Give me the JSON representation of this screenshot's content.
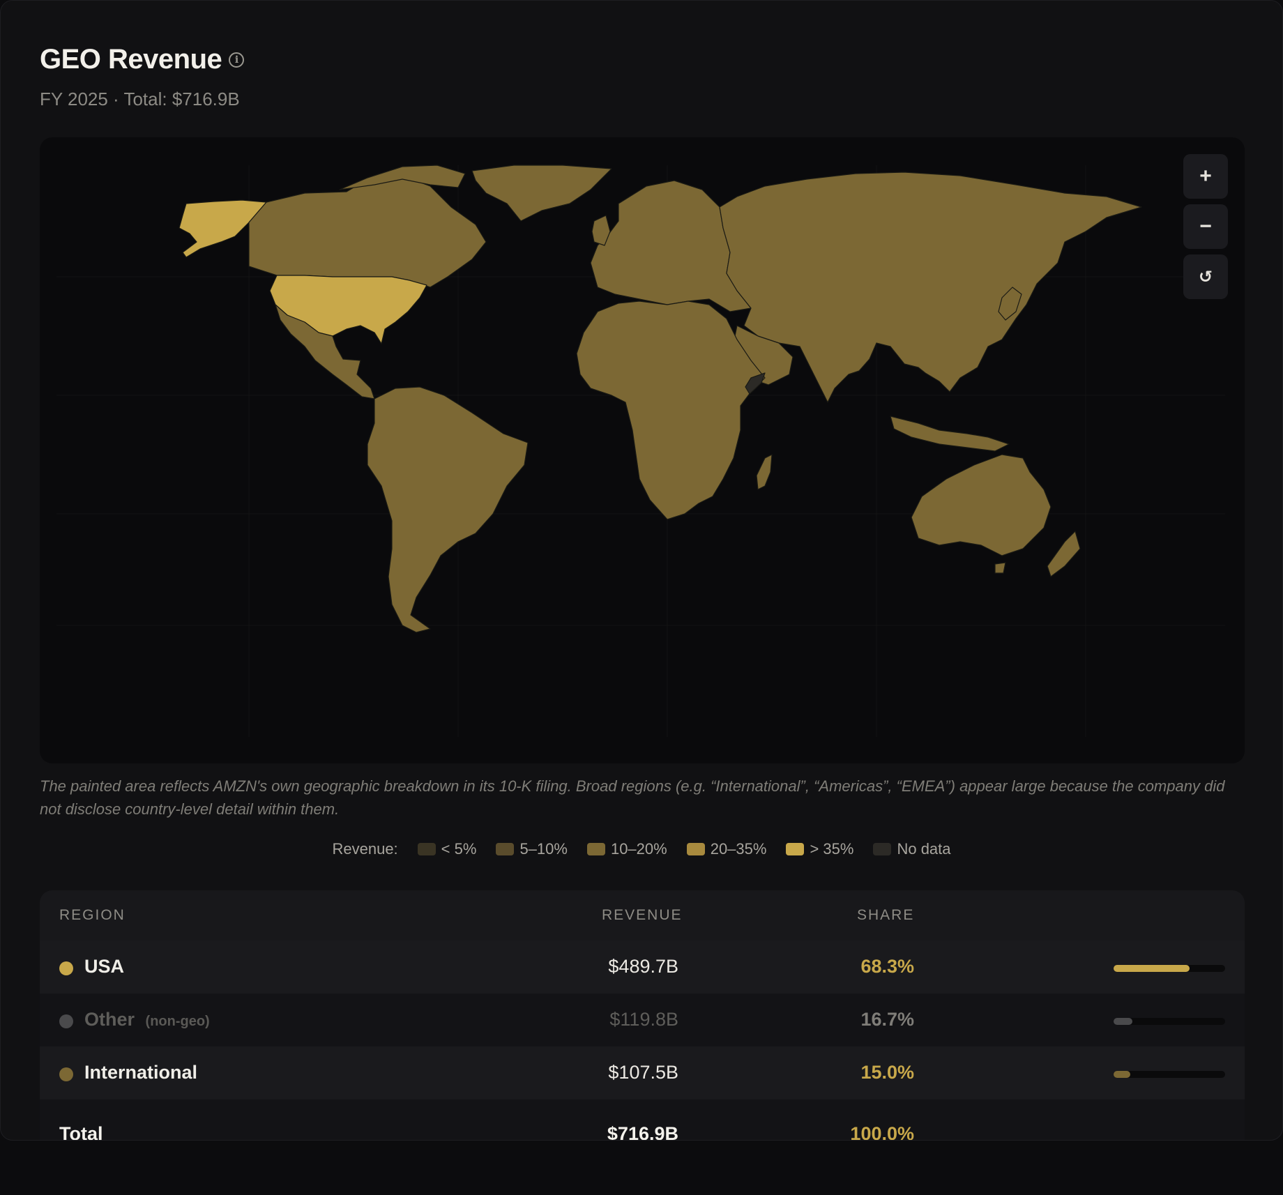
{
  "header": {
    "title": "GEO Revenue",
    "subtitle": "FY 2025 · Total: $716.9B",
    "info_icon": "info-icon"
  },
  "map_controls": {
    "zoom_in": "+",
    "zoom_out": "−",
    "reset": "↺"
  },
  "caption": "The painted area reflects AMZN's own geographic breakdown in its 10-K filing. Broad regions (e.g. “International”, “Americas”, “EMEA”) appear large because the company did not disclose country-level detail within them.",
  "legend": {
    "label": "Revenue:",
    "items": [
      {
        "label": "< 5%",
        "color": "#3a3424"
      },
      {
        "label": "5–10%",
        "color": "#5a4c2c"
      },
      {
        "label": "10–20%",
        "color": "#7c6834"
      },
      {
        "label": "20–35%",
        "color": "#a88a3e"
      },
      {
        "label": "> 35%",
        "color": "#c8a84a"
      },
      {
        "label": "No data",
        "color": "#2c2a26"
      }
    ]
  },
  "colors": {
    "usa": "#c8a84a",
    "international": "#7c6834",
    "other": "#4a4a4c",
    "accent": "#c8a84a",
    "share_other": "#7f7d78"
  },
  "table": {
    "headers": {
      "region": "REGION",
      "revenue": "REVENUE",
      "share": "SHARE"
    },
    "rows": [
      {
        "region": "USA",
        "note": "",
        "revenue": "$489.7B",
        "share": "68.3%",
        "share_value": 68.3,
        "muted": false
      },
      {
        "region": "Other",
        "note": "(non-geo)",
        "revenue": "$119.8B",
        "share": "16.7%",
        "share_value": 16.7,
        "muted": true
      },
      {
        "region": "International",
        "note": "",
        "revenue": "$107.5B",
        "share": "15.0%",
        "share_value": 15.0,
        "muted": false
      }
    ],
    "total": {
      "label": "Total",
      "revenue": "$716.9B",
      "share": "100.0%"
    }
  }
}
